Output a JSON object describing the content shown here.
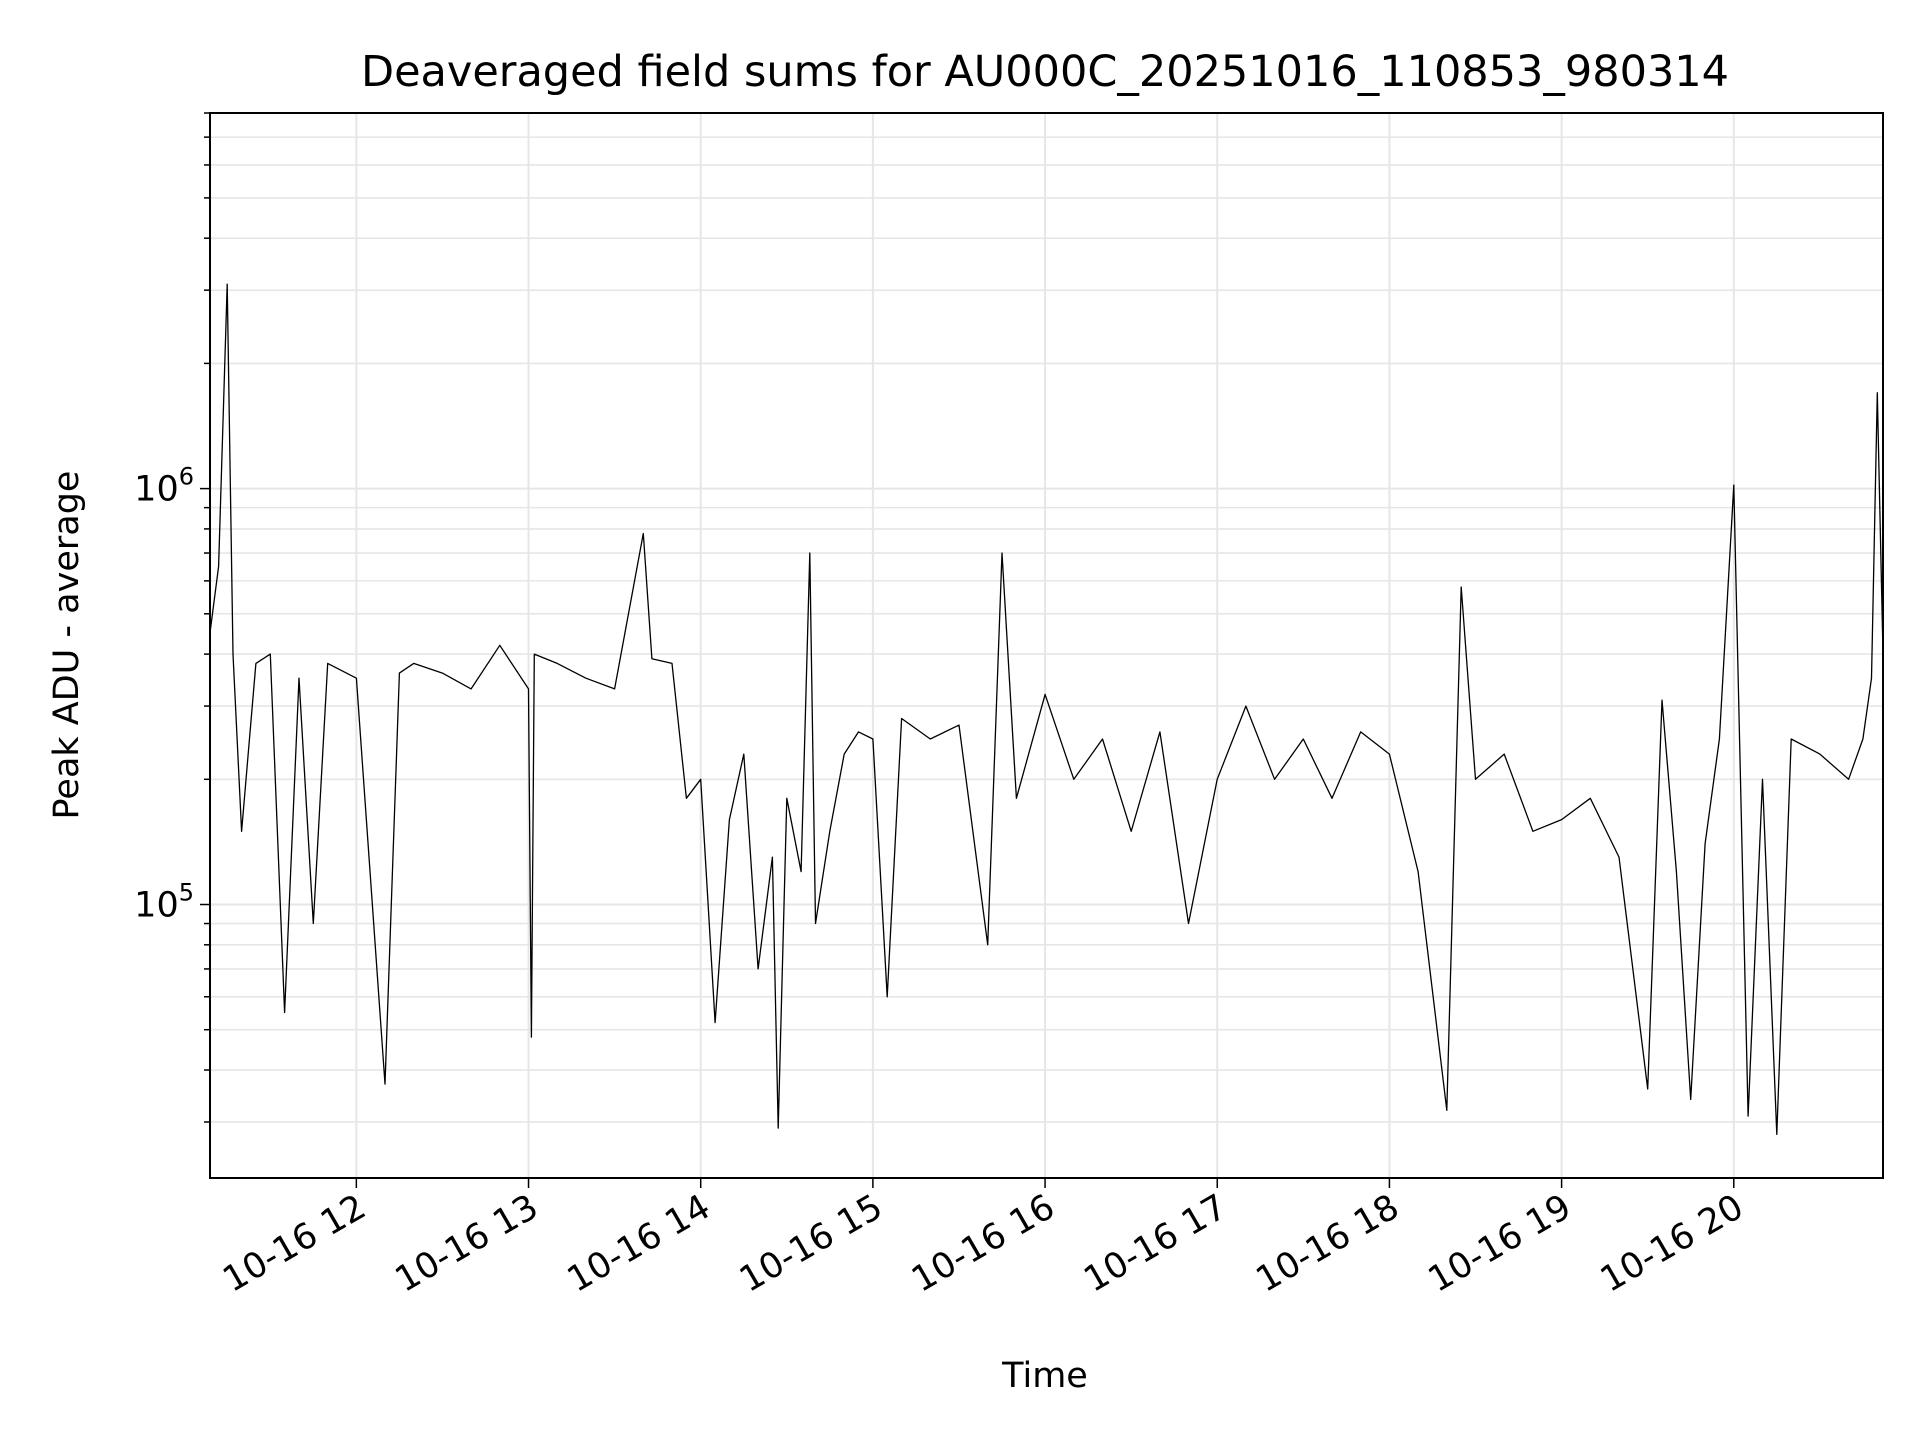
{
  "chart_data": {
    "type": "line",
    "title": "Deaveraged field sums for AU000C_20251016_110853_980314",
    "xlabel": "Time",
    "ylabel": "Peak ADU - average",
    "yscale": "log",
    "ylim": [
      22000,
      8000000
    ],
    "xlim": [
      "2025-10-16 11:09",
      "2025-10-16 20:52"
    ],
    "grid": true,
    "line_color": "#000000",
    "grid_color": "#e6e6e6",
    "x_ticks": [
      {
        "value": "2025-10-16 12:00",
        "label": "10-16 12"
      },
      {
        "value": "2025-10-16 13:00",
        "label": "10-16 13"
      },
      {
        "value": "2025-10-16 14:00",
        "label": "10-16 14"
      },
      {
        "value": "2025-10-16 15:00",
        "label": "10-16 15"
      },
      {
        "value": "2025-10-16 16:00",
        "label": "10-16 16"
      },
      {
        "value": "2025-10-16 17:00",
        "label": "10-16 17"
      },
      {
        "value": "2025-10-16 18:00",
        "label": "10-16 18"
      },
      {
        "value": "2025-10-16 19:00",
        "label": "10-16 19"
      },
      {
        "value": "2025-10-16 20:00",
        "label": "10-16 20"
      }
    ],
    "y_ticks": [
      {
        "value": 100000,
        "base": "10",
        "exp": "5"
      },
      {
        "value": 1000000,
        "base": "10",
        "exp": "6"
      }
    ],
    "series": [
      {
        "x": [
          "2025-10-16 11:09",
          "2025-10-16 11:12",
          "2025-10-16 11:15",
          "2025-10-16 11:17",
          "2025-10-16 11:20",
          "2025-10-16 11:25",
          "2025-10-16 11:30",
          "2025-10-16 11:35",
          "2025-10-16 11:40",
          "2025-10-16 11:45",
          "2025-10-16 11:50",
          "2025-10-16 12:00",
          "2025-10-16 12:10",
          "2025-10-16 12:15",
          "2025-10-16 12:20",
          "2025-10-16 12:30",
          "2025-10-16 12:40",
          "2025-10-16 12:50",
          "2025-10-16 13:00",
          "2025-10-16 13:01",
          "2025-10-16 13:02",
          "2025-10-16 13:10",
          "2025-10-16 13:20",
          "2025-10-16 13:30",
          "2025-10-16 13:40",
          "2025-10-16 13:43",
          "2025-10-16 13:50",
          "2025-10-16 13:55",
          "2025-10-16 14:00",
          "2025-10-16 14:05",
          "2025-10-16 14:10",
          "2025-10-16 14:15",
          "2025-10-16 14:20",
          "2025-10-16 14:25",
          "2025-10-16 14:27",
          "2025-10-16 14:30",
          "2025-10-16 14:35",
          "2025-10-16 14:38",
          "2025-10-16 14:40",
          "2025-10-16 14:45",
          "2025-10-16 14:50",
          "2025-10-16 14:55",
          "2025-10-16 15:00",
          "2025-10-16 15:05",
          "2025-10-16 15:10",
          "2025-10-16 15:20",
          "2025-10-16 15:30",
          "2025-10-16 15:40",
          "2025-10-16 15:45",
          "2025-10-16 15:50",
          "2025-10-16 16:00",
          "2025-10-16 16:10",
          "2025-10-16 16:20",
          "2025-10-16 16:30",
          "2025-10-16 16:40",
          "2025-10-16 16:50",
          "2025-10-16 17:00",
          "2025-10-16 17:10",
          "2025-10-16 17:20",
          "2025-10-16 17:30",
          "2025-10-16 17:40",
          "2025-10-16 17:50",
          "2025-10-16 18:00",
          "2025-10-16 18:10",
          "2025-10-16 18:20",
          "2025-10-16 18:25",
          "2025-10-16 18:30",
          "2025-10-16 18:40",
          "2025-10-16 18:50",
          "2025-10-16 19:00",
          "2025-10-16 19:10",
          "2025-10-16 19:20",
          "2025-10-16 19:30",
          "2025-10-16 19:35",
          "2025-10-16 19:40",
          "2025-10-16 19:45",
          "2025-10-16 19:50",
          "2025-10-16 19:55",
          "2025-10-16 20:00",
          "2025-10-16 20:05",
          "2025-10-16 20:10",
          "2025-10-16 20:15",
          "2025-10-16 20:20",
          "2025-10-16 20:30",
          "2025-10-16 20:40",
          "2025-10-16 20:45",
          "2025-10-16 20:48",
          "2025-10-16 20:50",
          "2025-10-16 20:52"
        ],
        "y": [
          450000,
          650000,
          3100000,
          400000,
          150000,
          380000,
          400000,
          55000,
          350000,
          90000,
          380000,
          350000,
          37000,
          360000,
          380000,
          360000,
          330000,
          420000,
          330000,
          48000,
          400000,
          380000,
          350000,
          330000,
          780000,
          390000,
          380000,
          180000,
          200000,
          52000,
          160000,
          230000,
          70000,
          130000,
          29000,
          180000,
          120000,
          700000,
          90000,
          150000,
          230000,
          260000,
          250000,
          60000,
          280000,
          250000,
          270000,
          80000,
          700000,
          180000,
          320000,
          200000,
          250000,
          150000,
          260000,
          90000,
          200000,
          300000,
          200000,
          250000,
          180000,
          260000,
          230000,
          120000,
          32000,
          580000,
          200000,
          230000,
          150000,
          160000,
          180000,
          130000,
          36000,
          310000,
          120000,
          34000,
          140000,
          250000,
          1020000,
          31000,
          200000,
          28000,
          250000,
          230000,
          200000,
          250000,
          350000,
          1700000,
          400000
        ]
      }
    ]
  }
}
